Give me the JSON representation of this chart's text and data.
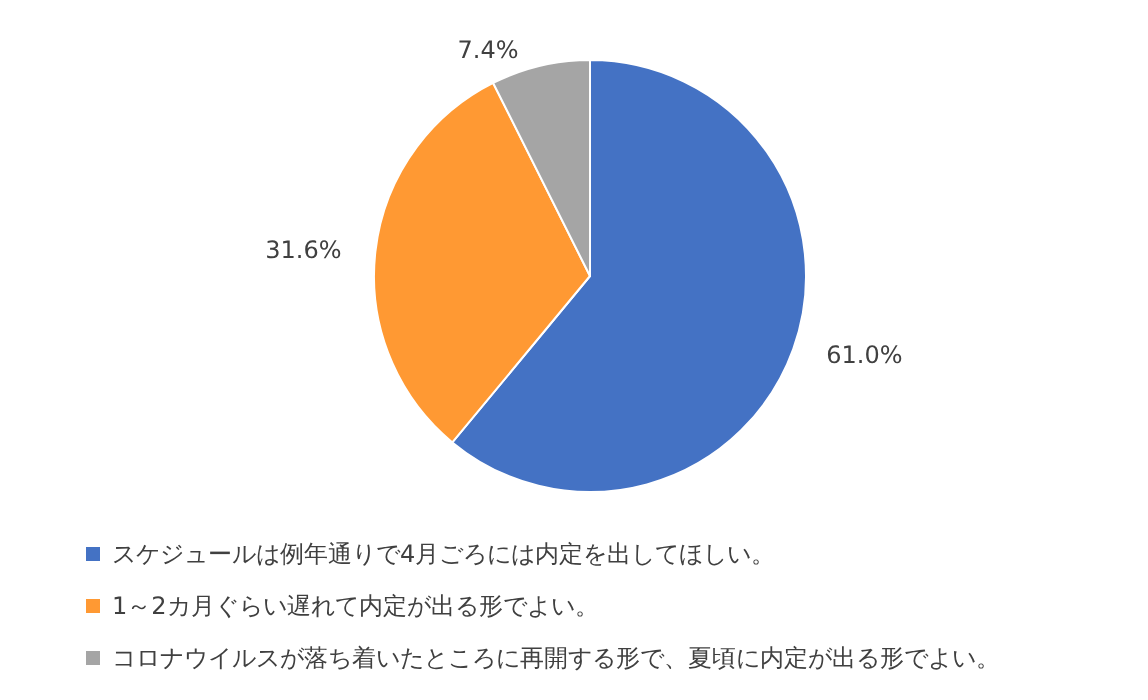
{
  "chart_data": {
    "type": "pie",
    "categories": [
      "スケジュールは例年通りで4月ごろには内定を出してほしい。",
      "1～2カ月ぐらい遅れて内定が出る形でよい。",
      "コロナウイルスが落ち着いたところに再開する形で、夏頃に内定が出る形でよい。"
    ],
    "values": [
      61.0,
      31.6,
      7.4
    ],
    "colors": [
      "#4472c4",
      "#ff9933",
      "#a5a5a5"
    ],
    "value_labels": [
      "61.0%",
      "31.6%",
      "7.4%"
    ],
    "legend": "bottom"
  }
}
